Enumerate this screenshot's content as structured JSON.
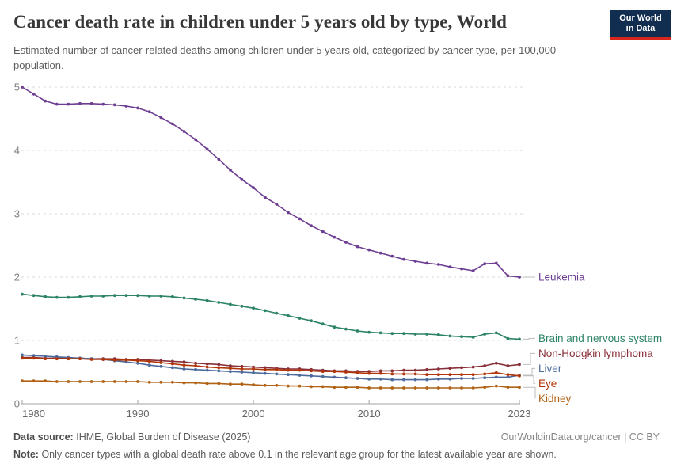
{
  "header": {
    "logo": {
      "line1": "Our World",
      "line2": "in Data",
      "bg_color": "#112e51",
      "bar_color": "#d7271c"
    }
  },
  "chart_data": {
    "type": "line",
    "title": "Cancer death rate in children under 5 years old by type, World",
    "subtitle": "Estimated number of cancer-related deaths among children under 5 years old, categorized by cancer type, per 100,000 population.",
    "xlabel": "",
    "ylabel": "",
    "xlim": [
      1980,
      2023
    ],
    "ylim": [
      0,
      5
    ],
    "grid": true,
    "gridline_style": "dashed",
    "legend_position": "right-end-labels",
    "y_ticks": [
      0,
      1,
      2,
      3,
      4,
      5
    ],
    "x_ticks": [
      1980,
      1990,
      2000,
      2010,
      2023
    ],
    "x_tick_labels": [
      "1980",
      "1990",
      "2000",
      "2010",
      "2023"
    ],
    "y_tick_labels": [
      "0",
      "1",
      "2",
      "3",
      "4",
      "5"
    ],
    "x": [
      1980,
      1981,
      1982,
      1983,
      1984,
      1985,
      1986,
      1987,
      1988,
      1989,
      1990,
      1991,
      1992,
      1993,
      1994,
      1995,
      1996,
      1997,
      1998,
      1999,
      2000,
      2001,
      2002,
      2003,
      2004,
      2005,
      2006,
      2007,
      2008,
      2009,
      2010,
      2011,
      2012,
      2013,
      2014,
      2015,
      2016,
      2017,
      2018,
      2019,
      2020,
      2021,
      2022,
      2023
    ],
    "series": [
      {
        "name": "Leukemia",
        "color": "#6D3E91",
        "values": [
          5.0,
          4.89,
          4.78,
          4.73,
          4.73,
          4.74,
          4.74,
          4.73,
          4.72,
          4.7,
          4.67,
          4.61,
          4.52,
          4.42,
          4.3,
          4.17,
          4.02,
          3.86,
          3.69,
          3.54,
          3.41,
          3.26,
          3.15,
          3.02,
          2.92,
          2.81,
          2.72,
          2.63,
          2.55,
          2.48,
          2.43,
          2.38,
          2.33,
          2.28,
          2.25,
          2.22,
          2.2,
          2.16,
          2.13,
          2.1,
          2.21,
          2.22,
          2.02,
          2.0
        ]
      },
      {
        "name": "Brain and nervous system",
        "color": "#2C8465",
        "values": [
          1.73,
          1.71,
          1.69,
          1.68,
          1.68,
          1.69,
          1.7,
          1.7,
          1.71,
          1.71,
          1.71,
          1.7,
          1.7,
          1.69,
          1.67,
          1.65,
          1.63,
          1.6,
          1.57,
          1.54,
          1.51,
          1.47,
          1.43,
          1.39,
          1.35,
          1.31,
          1.26,
          1.21,
          1.18,
          1.15,
          1.13,
          1.12,
          1.11,
          1.11,
          1.1,
          1.1,
          1.09,
          1.07,
          1.06,
          1.05,
          1.1,
          1.12,
          1.03,
          1.02
        ]
      },
      {
        "name": "Non-Hodgkin lymphoma",
        "color": "#883039",
        "values": [
          0.73,
          0.73,
          0.72,
          0.72,
          0.72,
          0.72,
          0.71,
          0.71,
          0.71,
          0.7,
          0.7,
          0.69,
          0.68,
          0.67,
          0.66,
          0.64,
          0.63,
          0.62,
          0.6,
          0.59,
          0.58,
          0.57,
          0.56,
          0.55,
          0.55,
          0.54,
          0.53,
          0.52,
          0.52,
          0.51,
          0.51,
          0.52,
          0.52,
          0.53,
          0.53,
          0.54,
          0.55,
          0.56,
          0.57,
          0.58,
          0.6,
          0.64,
          0.6,
          0.62
        ]
      },
      {
        "name": "Liver",
        "color": "#4C6A9C",
        "values": [
          0.77,
          0.76,
          0.75,
          0.74,
          0.73,
          0.72,
          0.71,
          0.7,
          0.68,
          0.66,
          0.64,
          0.61,
          0.59,
          0.57,
          0.55,
          0.54,
          0.53,
          0.52,
          0.51,
          0.5,
          0.49,
          0.48,
          0.47,
          0.46,
          0.45,
          0.44,
          0.43,
          0.42,
          0.41,
          0.4,
          0.39,
          0.39,
          0.38,
          0.38,
          0.38,
          0.38,
          0.39,
          0.39,
          0.4,
          0.4,
          0.41,
          0.42,
          0.42,
          0.45
        ]
      },
      {
        "name": "Eye",
        "color": "#B13507",
        "values": [
          0.72,
          0.72,
          0.71,
          0.71,
          0.71,
          0.71,
          0.7,
          0.7,
          0.69,
          0.69,
          0.68,
          0.67,
          0.65,
          0.63,
          0.61,
          0.6,
          0.58,
          0.57,
          0.56,
          0.55,
          0.55,
          0.54,
          0.54,
          0.53,
          0.53,
          0.52,
          0.51,
          0.51,
          0.5,
          0.49,
          0.48,
          0.48,
          0.47,
          0.47,
          0.47,
          0.46,
          0.46,
          0.46,
          0.46,
          0.46,
          0.47,
          0.49,
          0.46,
          0.44
        ]
      },
      {
        "name": "Kidney",
        "color": "#B16214",
        "values": [
          0.36,
          0.36,
          0.36,
          0.35,
          0.35,
          0.35,
          0.35,
          0.35,
          0.35,
          0.35,
          0.35,
          0.34,
          0.34,
          0.34,
          0.33,
          0.33,
          0.32,
          0.32,
          0.31,
          0.31,
          0.3,
          0.29,
          0.29,
          0.28,
          0.28,
          0.27,
          0.27,
          0.26,
          0.26,
          0.26,
          0.25,
          0.25,
          0.25,
          0.25,
          0.25,
          0.25,
          0.25,
          0.25,
          0.25,
          0.25,
          0.26,
          0.28,
          0.26,
          0.26
        ]
      }
    ],
    "style": {
      "gridline_color": "#d9d9d9",
      "axis_color": "#a3a3a3",
      "y_tick_label_color": "#7f7f7f",
      "x_tick_label_color": "#666666",
      "connector_color": "#bdbdbd"
    }
  },
  "footer": {
    "data_source_label": "Data source:",
    "data_source_value": "IHME, Global Burden of Disease (2025)",
    "attribution": "OurWorldinData.org/cancer | CC BY",
    "note_label": "Note:",
    "note_text": "Only cancer types with a global death rate above 0.1 in the relevant age group for the latest available year are shown."
  }
}
